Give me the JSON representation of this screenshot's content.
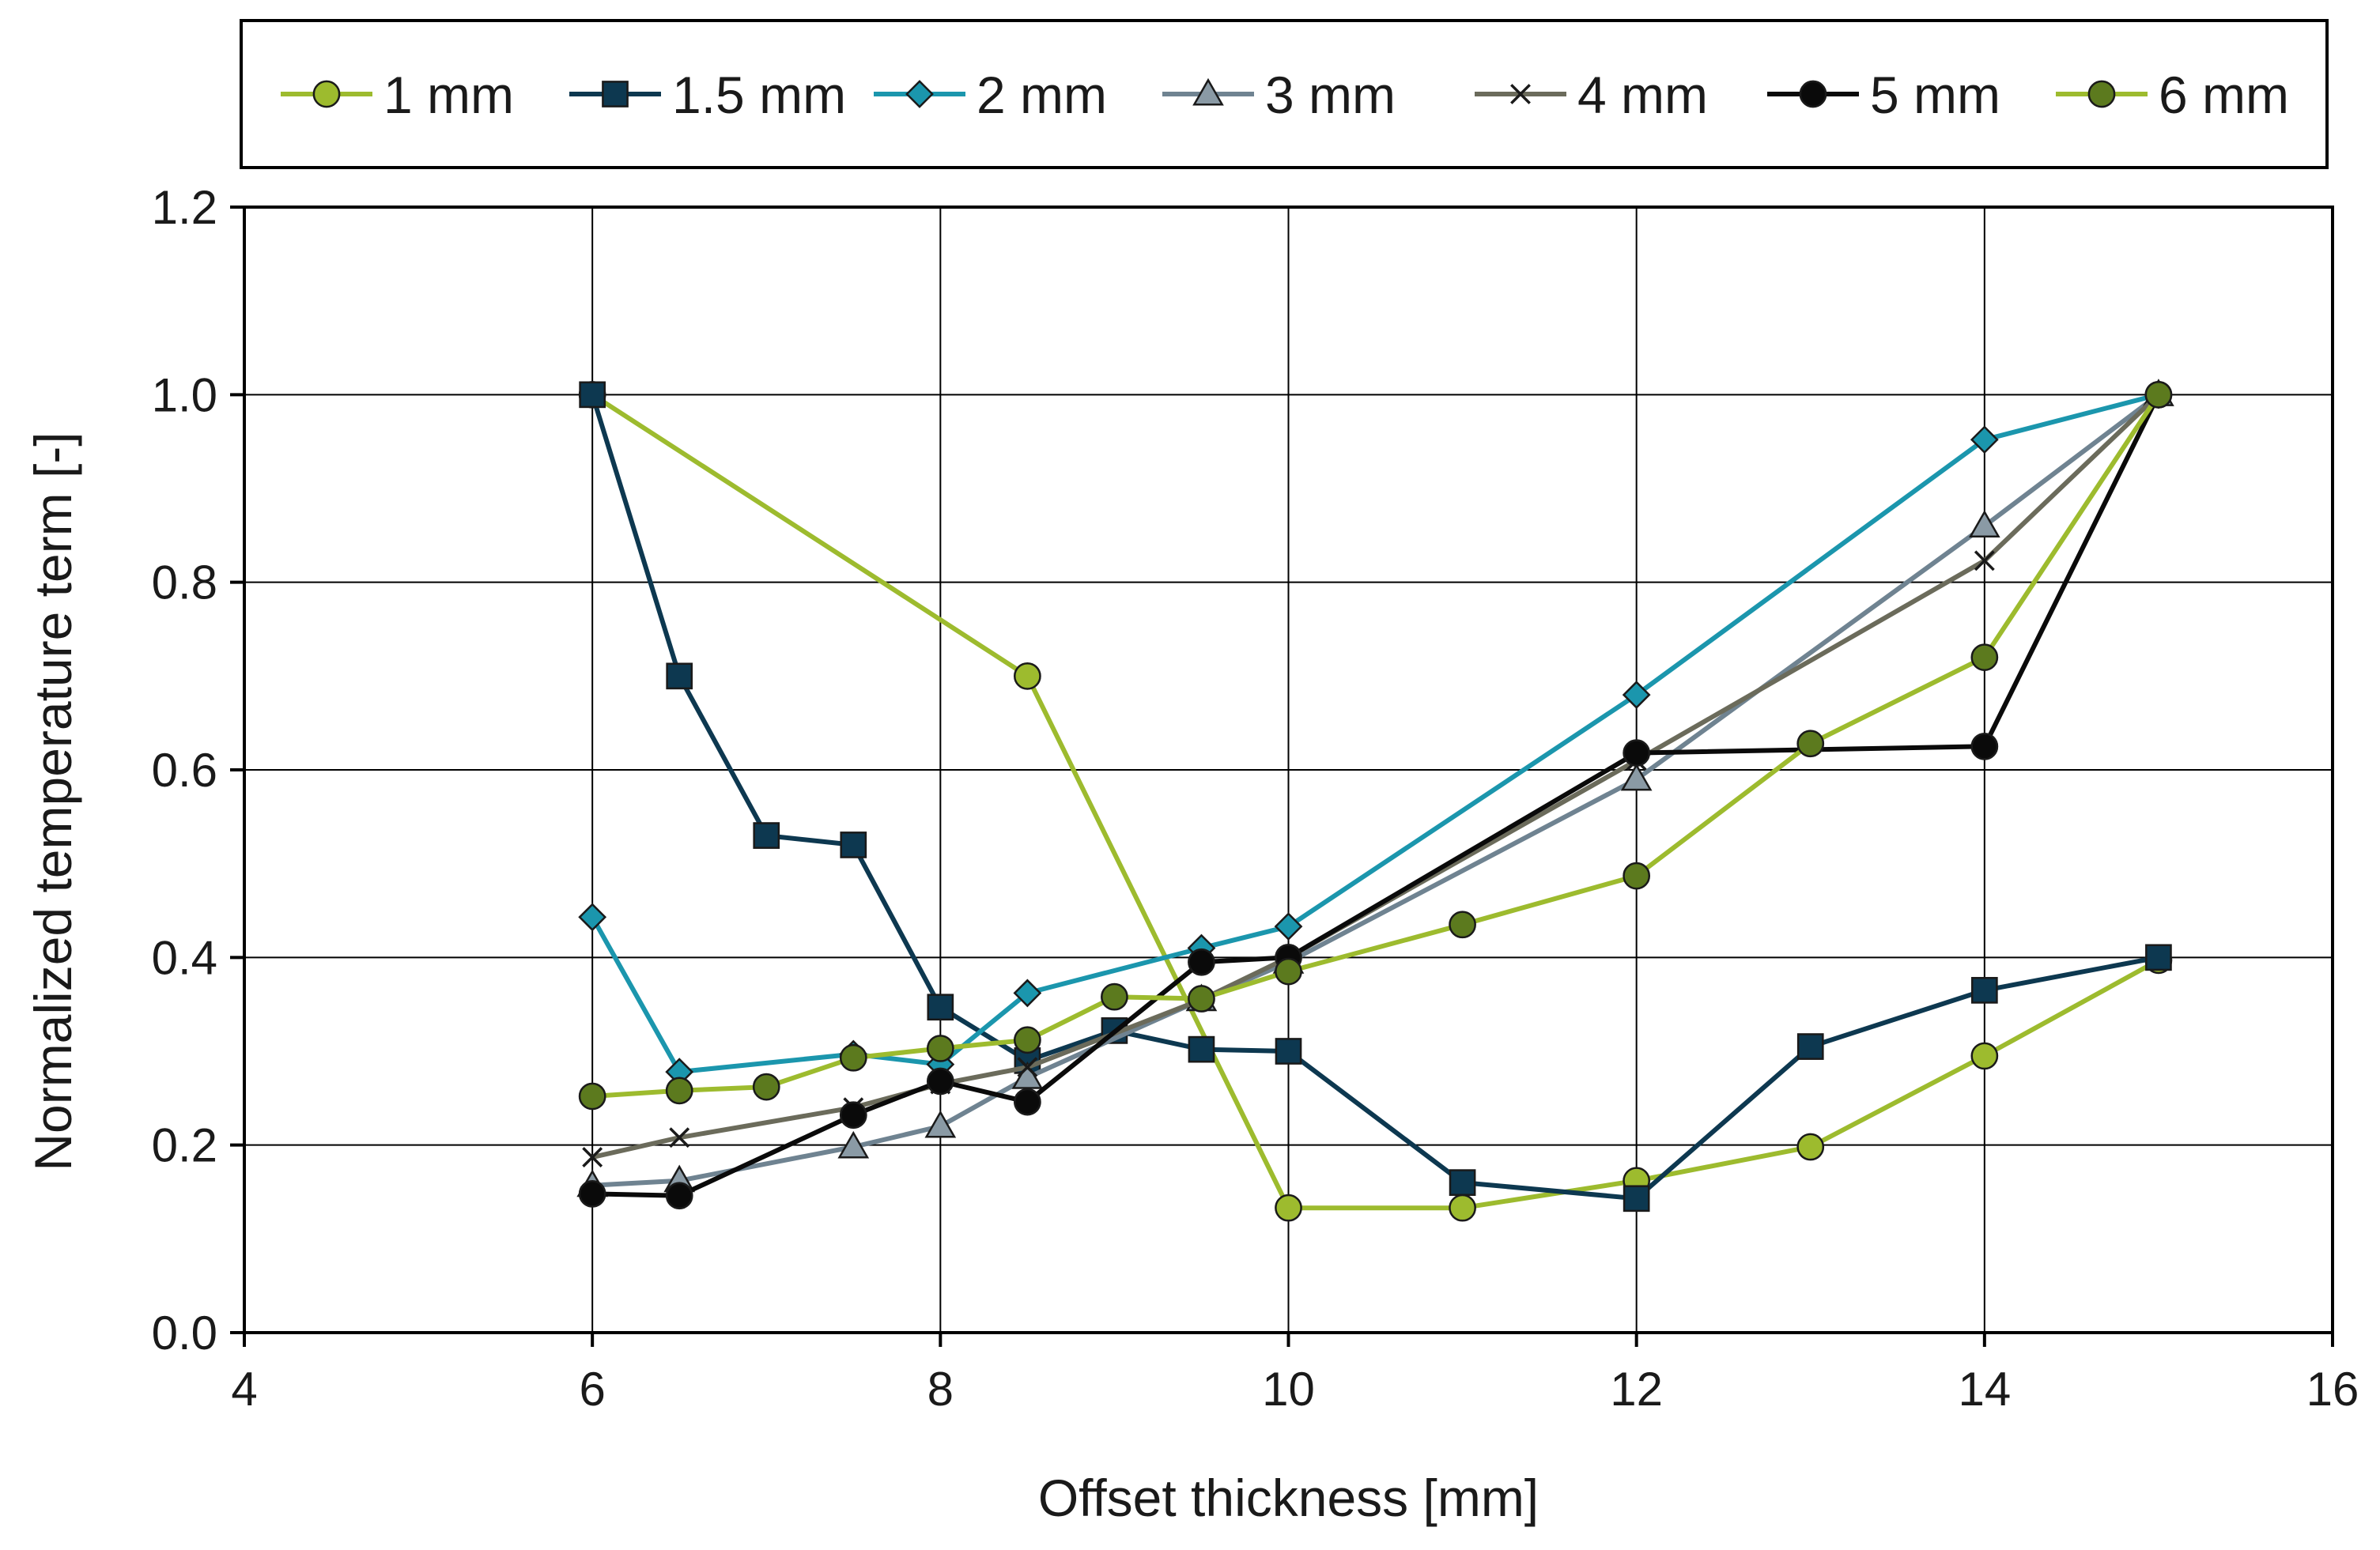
{
  "chart_data": {
    "type": "line",
    "title": "",
    "xlabel": "Offset thickness   [mm]",
    "ylabel": "Normalized temperature term   [-]",
    "xlim": [
      4,
      16
    ],
    "ylim": [
      0,
      1.2
    ],
    "xticks": [
      4,
      6,
      8,
      10,
      12,
      14,
      16
    ],
    "yticks": [
      0.0,
      0.2,
      0.4,
      0.6,
      0.8,
      1.0,
      1.2
    ],
    "xtick_labels": [
      "4",
      "6",
      "8",
      "10",
      "12",
      "14",
      "16"
    ],
    "ytick_labels": [
      "0.0",
      "0.2",
      "0.4",
      "0.6",
      "0.8",
      "1.0",
      "1.2"
    ],
    "grid": true,
    "legend_position": "top",
    "series": [
      {
        "name": "1 mm",
        "color": "#9dbb2e",
        "marker": "circle",
        "marker_fill": "#9dbb2e",
        "x": [
          6,
          8.5,
          10,
          11,
          12,
          13,
          14,
          15
        ],
        "y": [
          1.0,
          0.7,
          0.133,
          0.133,
          0.162,
          0.198,
          0.295,
          0.397
        ]
      },
      {
        "name": "1.5 mm",
        "color": "#0d3850",
        "marker": "square",
        "marker_fill": "#0d3850",
        "x": [
          6,
          6.5,
          7,
          7.5,
          8,
          8.5,
          9,
          9.5,
          10,
          11,
          12,
          13,
          14,
          15
        ],
        "y": [
          1.0,
          0.7,
          0.53,
          0.52,
          0.347,
          0.29,
          0.322,
          0.302,
          0.3,
          0.16,
          0.143,
          0.305,
          0.365,
          0.4
        ]
      },
      {
        "name": "2 mm",
        "color": "#1b96ad",
        "marker": "diamond",
        "marker_fill": "#1b96ad",
        "x": [
          6,
          6.5,
          7.5,
          8,
          8.5,
          9.5,
          10,
          12,
          14,
          15
        ],
        "y": [
          0.443,
          0.278,
          0.297,
          0.286,
          0.362,
          0.41,
          0.433,
          0.68,
          0.952,
          1.0
        ]
      },
      {
        "name": "3 mm",
        "color": "#6f8391",
        "marker": "triangle",
        "marker_fill": "#8a9aa5",
        "x": [
          6,
          6.5,
          7.5,
          8,
          8.5,
          9.5,
          10,
          12,
          14,
          15
        ],
        "y": [
          0.157,
          0.162,
          0.198,
          0.22,
          0.272,
          0.355,
          0.395,
          0.59,
          0.86,
          1.0
        ]
      },
      {
        "name": "4 mm",
        "color": "#6b6b5b",
        "marker": "x",
        "marker_fill": "#1a1a1a",
        "x": [
          6,
          6.5,
          7.5,
          8,
          8.5,
          9.5,
          10,
          12,
          14,
          15
        ],
        "y": [
          0.187,
          0.208,
          0.24,
          0.265,
          0.283,
          0.355,
          0.4,
          0.61,
          0.823,
          1.0
        ]
      },
      {
        "name": "5 mm",
        "color": "#0a0a0a",
        "marker": "circle",
        "marker_fill": "#0a0a0a",
        "x": [
          6,
          6.5,
          7.5,
          8,
          8.5,
          9.5,
          10,
          12,
          14,
          15
        ],
        "y": [
          0.148,
          0.146,
          0.232,
          0.268,
          0.246,
          0.395,
          0.4,
          0.618,
          0.625,
          1.0
        ]
      },
      {
        "name": "6 mm",
        "color": "#9dbb2e",
        "marker": "circle",
        "marker_fill": "#5c7a1e",
        "x": [
          6,
          6.5,
          7,
          7.5,
          8,
          8.5,
          9,
          9.5,
          10,
          11,
          12,
          13,
          14,
          15
        ],
        "y": [
          0.252,
          0.258,
          0.262,
          0.293,
          0.303,
          0.312,
          0.358,
          0.356,
          0.385,
          0.435,
          0.487,
          0.628,
          0.72,
          1.0
        ]
      }
    ]
  }
}
